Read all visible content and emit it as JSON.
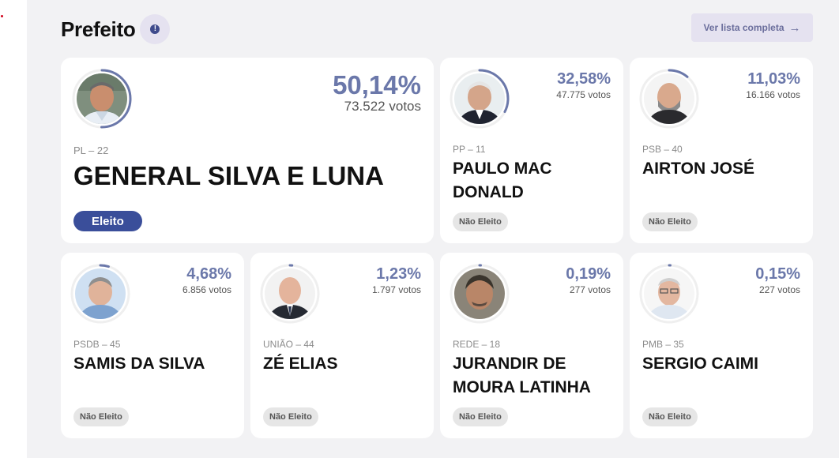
{
  "header": {
    "title": "Prefeito",
    "full_list_label": "Ver lista completa"
  },
  "candidates": [
    {
      "pct": "50,14%",
      "votes": "73.522 votos",
      "party": "PL – 22",
      "name": "GENERAL SILVA E LUNA",
      "status": "Eleito",
      "share": 0.5014
    },
    {
      "pct": "32,58%",
      "votes": "47.775 votos",
      "party": "PP – 11",
      "name": "PAULO MAC DONALD",
      "status": "Não Eleito",
      "share": 0.3258
    },
    {
      "pct": "11,03%",
      "votes": "16.166 votos",
      "party": "PSB – 40",
      "name": "AIRTON JOSÉ",
      "status": "Não Eleito",
      "share": 0.1103
    },
    {
      "pct": "4,68%",
      "votes": "6.856 votos",
      "party": "PSDB – 45",
      "name": "SAMIS DA SILVA",
      "status": "Não Eleito",
      "share": 0.0468
    },
    {
      "pct": "1,23%",
      "votes": "1.797 votos",
      "party": "UNIÃO – 44",
      "name": "ZÉ ELIAS",
      "status": "Não Eleito",
      "share": 0.0123
    },
    {
      "pct": "0,19%",
      "votes": "277 votos",
      "party": "REDE – 18",
      "name": "JURANDIR DE MOURA LATINHA",
      "status": "Não Eleito",
      "share": 0.0019
    },
    {
      "pct": "0,15%",
      "votes": "227 votos",
      "party": "PMB – 35",
      "name": "SERGIO CAIMI",
      "status": "Não Eleito",
      "share": 0.0015
    }
  ],
  "colors": {
    "accent": "#6b78aa",
    "elected": "#3a4e9a",
    "panel": "#f2f2f4"
  }
}
